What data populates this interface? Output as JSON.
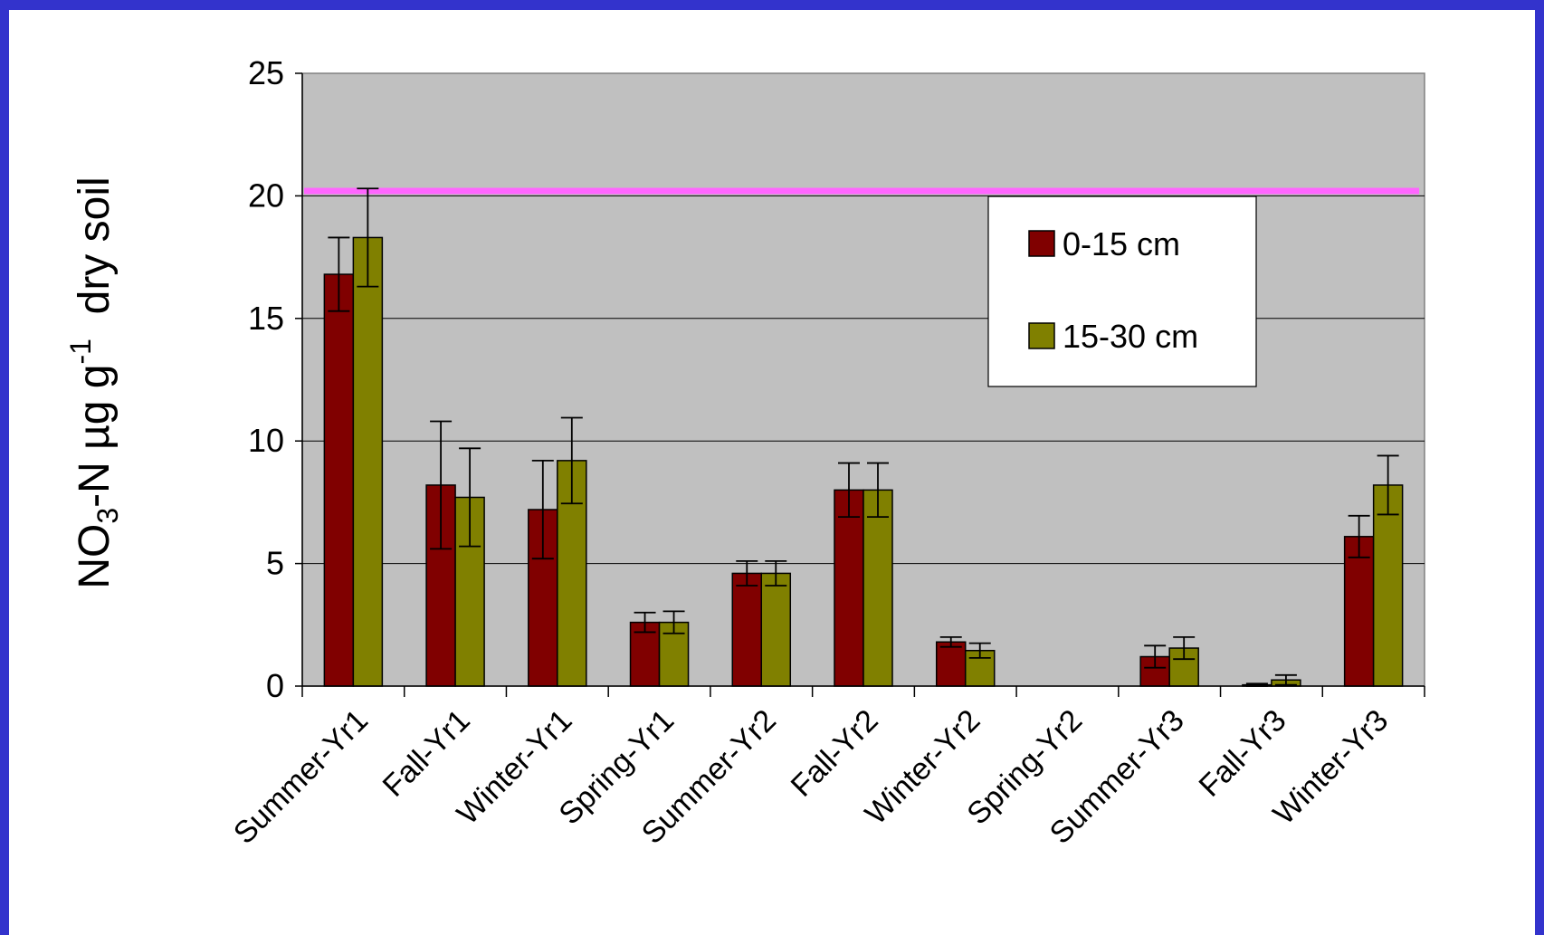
{
  "chart_data": {
    "type": "bar",
    "categories": [
      "Summer-Yr1",
      "Fall-Yr1",
      "Winter-Yr1",
      "Spring-Yr1",
      "Summer-Yr2",
      "Fall-Yr2",
      "Winter-Yr2",
      "Spring-Yr2",
      "Summer-Yr3",
      "Fall-Yr3",
      "Winter-Yr3"
    ],
    "series": [
      {
        "name": "0-15 cm",
        "color": "#800000",
        "values": [
          16.8,
          8.2,
          7.2,
          2.6,
          4.6,
          8.0,
          1.8,
          0.0,
          1.2,
          0.05,
          6.1
        ],
        "error": [
          1.5,
          2.6,
          2.0,
          0.4,
          0.5,
          1.1,
          0.2,
          0.0,
          0.45,
          0.05,
          0.85
        ]
      },
      {
        "name": "15-30 cm",
        "color": "#808000",
        "values": [
          18.3,
          7.7,
          9.2,
          2.6,
          4.6,
          8.0,
          1.45,
          0.0,
          1.55,
          0.25,
          8.2
        ],
        "error": [
          2.0,
          2.0,
          1.75,
          0.45,
          0.5,
          1.1,
          0.3,
          0.0,
          0.45,
          0.2,
          1.2
        ]
      }
    ],
    "reference_line": {
      "value": 20.2,
      "color": "#FF66FF"
    },
    "ylim": [
      0,
      25
    ],
    "yticks": [
      "0",
      "5",
      "10",
      "15",
      "20",
      "25"
    ],
    "ylabel": {
      "prefix": "NO",
      "sub": "3",
      "middle": "-N µg g",
      "sup": "-1",
      "suffix": "  dry soil"
    },
    "xlabel": "",
    "plot_background": "#C0C0C0",
    "grid": true,
    "legend_position": "top-right"
  }
}
